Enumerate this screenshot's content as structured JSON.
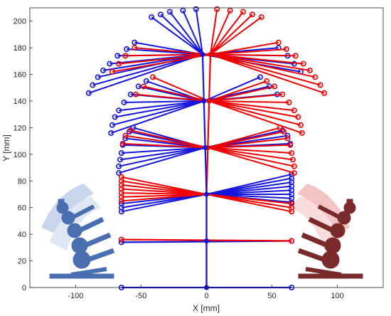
{
  "chart_data": {
    "type": "line",
    "xlabel": "X [mm]",
    "ylabel": "Y [mm]",
    "xlim": [
      -135,
      135
    ],
    "ylim": [
      0,
      210
    ],
    "xticks": [
      -100,
      -50,
      0,
      50,
      100
    ],
    "yticks": [
      0,
      20,
      40,
      60,
      80,
      100,
      120,
      140,
      160,
      180,
      200
    ],
    "grid": false,
    "legend": "none",
    "colors": {
      "blue": "#1414dc",
      "red": "#f00000",
      "inset_blue": "#4a6fb0",
      "inset_red": "#8b2d2d"
    },
    "series": [
      {
        "color": "blue",
        "spine": [
          [
            0,
            0
          ],
          [
            0,
            35
          ],
          [
            0,
            70
          ],
          [
            -1,
            105
          ],
          [
            -2,
            140
          ],
          [
            -3,
            175
          ]
        ],
        "base_line": [
          [
            -65,
            0
          ],
          [
            65,
            0
          ]
        ],
        "level_lines": [
          [
            [
              -65,
              34
            ],
            [
              65,
              35
            ]
          ]
        ],
        "fans": [
          {
            "pivot": [
              0,
              70
            ],
            "tips": [
              [
                -65,
                57
              ],
              [
                -65,
                60
              ],
              [
                -65,
                63
              ],
              [
                65,
                85
              ],
              [
                65,
                82
              ],
              [
                65,
                79
              ],
              [
                65,
                76
              ],
              [
                65,
                73
              ],
              [
                65,
                70
              ],
              [
                65,
                67
              ],
              [
                65,
                64
              ]
            ]
          },
          {
            "pivot": [
              -1,
              105
            ],
            "tips": [
              [
                -67,
                86
              ],
              [
                -67,
                91
              ],
              [
                -66,
                96
              ],
              [
                -65,
                101
              ],
              [
                -64,
                107
              ],
              [
                -62,
                112
              ],
              [
                -59,
                117
              ],
              [
                -56,
                120
              ],
              [
                58,
                118
              ],
              [
                62,
                114
              ],
              [
                64,
                108
              ]
            ]
          },
          {
            "pivot": [
              -2,
              140
            ],
            "tips": [
              [
                -73,
                116
              ],
              [
                -72,
                122
              ],
              [
                -70,
                128
              ],
              [
                -67,
                133
              ],
              [
                -63,
                139
              ],
              [
                -58,
                145
              ],
              [
                -52,
                151
              ],
              [
                -46,
                155
              ],
              [
                41,
                158
              ],
              [
                48,
                151
              ],
              [
                54,
                145
              ]
            ]
          },
          {
            "pivot": [
              -3,
              175
            ],
            "tips": [
              [
                -90,
                146
              ],
              [
                -87,
                152
              ],
              [
                -83,
                158
              ],
              [
                -79,
                163
              ],
              [
                -74,
                168
              ],
              [
                -68,
                174
              ],
              [
                -61,
                179
              ],
              [
                -55,
                184
              ],
              [
                55,
                180
              ],
              [
                62,
                174
              ],
              [
                67,
                168
              ],
              [
                72,
                162
              ],
              [
                -42,
                203
              ],
              [
                -35,
                205
              ],
              [
                -28,
                207
              ],
              [
                -18,
                208
              ],
              [
                -8,
                209
              ]
            ]
          }
        ]
      },
      {
        "color": "red",
        "spine": [
          [
            0,
            0
          ],
          [
            0,
            35
          ],
          [
            0,
            70
          ],
          [
            1,
            105
          ],
          [
            2,
            140
          ],
          [
            3,
            175
          ]
        ],
        "base_line": [],
        "level_lines": [
          [
            [
              -65,
              36
            ],
            [
              65,
              35
            ]
          ]
        ],
        "fans": [
          {
            "pivot": [
              0,
              70
            ],
            "tips": [
              [
                -65,
                65
              ],
              [
                -65,
                68
              ],
              [
                -65,
                71
              ],
              [
                -65,
                74
              ],
              [
                -65,
                77
              ],
              [
                -65,
                80
              ],
              [
                -65,
                83
              ],
              [
                65,
                60
              ],
              [
                65,
                57
              ],
              [
                65,
                63
              ]
            ]
          },
          {
            "pivot": [
              1,
              105
            ],
            "tips": [
              [
                -64,
                108
              ],
              [
                -62,
                114
              ],
              [
                -58,
                118
              ],
              [
                56,
                120
              ],
              [
                59,
                117
              ],
              [
                62,
                112
              ],
              [
                64,
                107
              ],
              [
                65,
                101
              ],
              [
                66,
                96
              ],
              [
                67,
                91
              ],
              [
                67,
                86
              ]
            ]
          },
          {
            "pivot": [
              2,
              140
            ],
            "tips": [
              [
                -54,
                145
              ],
              [
                -48,
                151
              ],
              [
                -41,
                158
              ],
              [
                46,
                155
              ],
              [
                52,
                151
              ],
              [
                58,
                145
              ],
              [
                63,
                139
              ],
              [
                67,
                133
              ],
              [
                70,
                128
              ],
              [
                72,
                122
              ],
              [
                73,
                116
              ]
            ]
          },
          {
            "pivot": [
              3,
              175
            ],
            "tips": [
              [
                -72,
                162
              ],
              [
                -67,
                168
              ],
              [
                -62,
                174
              ],
              [
                -55,
                180
              ],
              [
                55,
                184
              ],
              [
                61,
                179
              ],
              [
                68,
                174
              ],
              [
                74,
                168
              ],
              [
                79,
                163
              ],
              [
                83,
                158
              ],
              [
                87,
                152
              ],
              [
                90,
                146
              ],
              [
                8,
                209
              ],
              [
                18,
                208
              ],
              [
                28,
                207
              ],
              [
                35,
                205
              ],
              [
                42,
                203
              ]
            ]
          }
        ]
      }
    ],
    "insets": [
      {
        "name": "blue robot arm",
        "color": "inset_blue",
        "side": "left"
      },
      {
        "name": "red robot arm",
        "color": "inset_red",
        "side": "right"
      }
    ]
  }
}
